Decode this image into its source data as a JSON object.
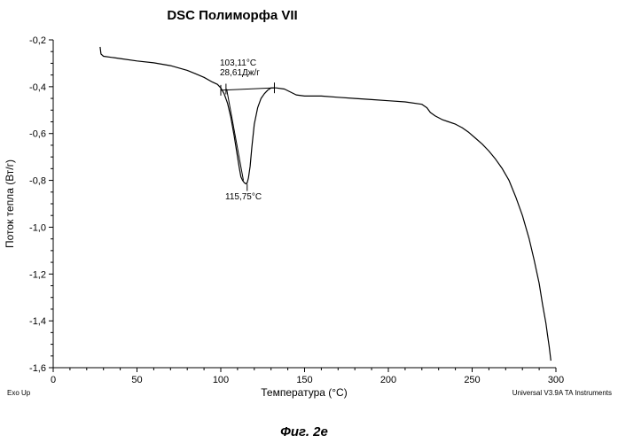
{
  "chart_data": {
    "type": "line",
    "title": "DSC Полиморфа VII",
    "xlabel": "Температура (°C)",
    "ylabel": "Поток тепла (Вт/г)",
    "xlim": [
      0,
      300
    ],
    "ylim": [
      -1.6,
      -0.2
    ],
    "x_ticks": [
      "0",
      "50",
      "100",
      "150",
      "200",
      "250",
      "300"
    ],
    "y_ticks": [
      "-0,2",
      "-0,4",
      "-0,6",
      "-0,8",
      "-1,0",
      "-1,2",
      "-1,4",
      "-1,6"
    ],
    "grid": false,
    "series": [
      {
        "x": [
          28,
          28.5,
          30,
          35,
          40,
          50,
          60,
          70,
          80,
          85,
          90,
          95,
          98,
          100,
          102,
          104,
          106,
          108,
          110,
          111,
          112,
          113,
          114,
          115,
          115.75,
          116.5,
          117.5,
          118.5,
          120,
          122,
          124,
          126,
          128,
          130,
          133,
          138,
          145,
          150,
          160,
          170,
          180,
          190,
          200,
          210,
          220,
          223,
          225,
          228,
          232,
          236,
          240,
          244,
          248,
          252,
          256,
          260,
          264,
          268,
          272,
          276,
          280,
          284,
          287,
          290,
          292,
          294,
          295,
          296,
          297
        ],
        "y": [
          -0.23,
          -0.26,
          -0.27,
          -0.275,
          -0.28,
          -0.29,
          -0.298,
          -0.31,
          -0.33,
          -0.345,
          -0.36,
          -0.38,
          -0.39,
          -0.405,
          -0.43,
          -0.47,
          -0.53,
          -0.61,
          -0.7,
          -0.745,
          -0.785,
          -0.8,
          -0.81,
          -0.815,
          -0.81,
          -0.79,
          -0.74,
          -0.66,
          -0.56,
          -0.49,
          -0.45,
          -0.43,
          -0.415,
          -0.405,
          -0.405,
          -0.41,
          -0.435,
          -0.44,
          -0.44,
          -0.445,
          -0.45,
          -0.455,
          -0.46,
          -0.465,
          -0.475,
          -0.49,
          -0.51,
          -0.525,
          -0.54,
          -0.55,
          -0.56,
          -0.575,
          -0.595,
          -0.62,
          -0.645,
          -0.675,
          -0.71,
          -0.75,
          -0.8,
          -0.87,
          -0.95,
          -1.05,
          -1.14,
          -1.24,
          -1.33,
          -1.41,
          -1.46,
          -1.51,
          -1.57
        ]
      }
    ],
    "baseline": {
      "x": [
        100,
        132
      ],
      "y": [
        -0.415,
        -0.405
      ]
    },
    "onset_tangent": {
      "x": [
        103.5,
        113.5
      ],
      "y": [
        -0.41,
        -0.8
      ]
    },
    "onset_marker": {
      "x": 103.11,
      "y": -0.41
    },
    "peak_marker": {
      "x": 115.75,
      "y": -0.815
    },
    "integration_limits": [
      {
        "x": 100,
        "y": -0.415
      },
      {
        "x": 132,
        "y": -0.405
      }
    ],
    "annotations": {
      "onset_temp": "103,11°C",
      "enthalpy": "28,61Дж/г",
      "peak_temp": "115,75°C"
    }
  },
  "footer": {
    "left": "Exo Up",
    "right": "Universal V3.9A TA Instruments"
  },
  "caption": "Фиг. 2е"
}
